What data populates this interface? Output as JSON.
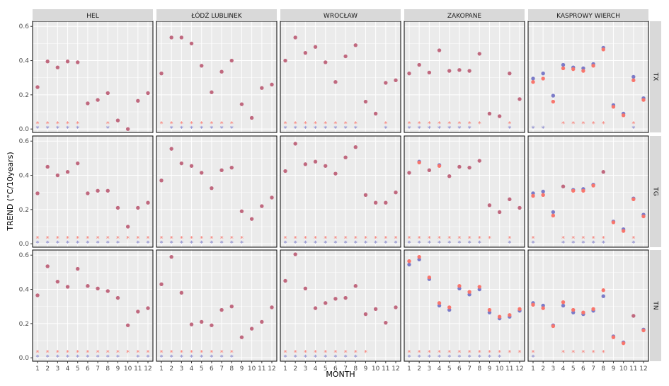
{
  "chart_data": {
    "type": "scatter",
    "xlabel": "MONTH",
    "ylabel": "TREND (°C/10years)",
    "ylim": [
      -0.02,
      0.63
    ],
    "y_ticks": [
      "0.0",
      "0.2",
      "0.4",
      "0.6"
    ],
    "x_ticks": [
      "1",
      "2",
      "3",
      "4",
      "5",
      "6",
      "7",
      "8",
      "9",
      "10",
      "11",
      "12"
    ],
    "columns": [
      "HEL",
      "ŁÓDŹ LUBLINEK",
      "WROCŁAW",
      "ZAKOPANE",
      "KASPROWY WIERCH"
    ],
    "rows": [
      "TX",
      "TG",
      "TN"
    ],
    "colors": {
      "panel_bg": "#ebebeb",
      "grid": "#ffffff",
      "strip_bg": "#d9d9d9",
      "series_red": "#f8766d",
      "series_blue": "#7b7bc8",
      "overlap": "#c0697f"
    },
    "panels": {
      "TX": {
        "HEL": {
          "red": [
            0.245,
            0.395,
            0.36,
            0.395,
            0.39,
            0.15,
            0.17,
            0.21,
            0.05,
            0.0,
            0.165,
            0.21
          ],
          "blue": [
            0.245,
            0.395,
            0.36,
            0.395,
            0.39,
            0.15,
            0.17,
            0.21,
            0.05,
            0.0,
            0.165,
            0.21
          ],
          "sig_red": [
            1,
            1,
            1,
            1,
            1,
            0,
            0,
            1,
            0,
            0,
            0,
            0
          ],
          "sig_blue": [
            1,
            1,
            1,
            1,
            1,
            0,
            0,
            1,
            0,
            0,
            0,
            0
          ]
        },
        "ŁÓDŹ LUBLINEK": {
          "red": [
            0.325,
            0.535,
            0.535,
            0.5,
            0.37,
            0.215,
            0.335,
            0.4,
            0.145,
            0.065,
            0.24,
            0.26
          ],
          "blue": [
            0.325,
            0.535,
            0.535,
            0.5,
            0.37,
            0.215,
            0.335,
            0.4,
            0.145,
            0.065,
            0.24,
            0.26
          ],
          "sig_red": [
            1,
            1,
            1,
            1,
            1,
            1,
            1,
            1,
            0,
            0,
            0,
            0
          ],
          "sig_blue": [
            0,
            1,
            1,
            1,
            1,
            1,
            1,
            1,
            0,
            0,
            0,
            0
          ]
        },
        "WROCŁAW": {
          "red": [
            0.4,
            0.535,
            0.445,
            0.48,
            0.39,
            0.275,
            0.425,
            0.49,
            0.16,
            0.09,
            0.27,
            0.285
          ],
          "blue": [
            0.4,
            0.535,
            0.445,
            0.48,
            0.39,
            0.275,
            0.425,
            0.49,
            0.16,
            0.09,
            0.27,
            0.285
          ],
          "sig_red": [
            1,
            1,
            1,
            1,
            1,
            1,
            1,
            1,
            0,
            0,
            1,
            0
          ],
          "sig_blue": [
            1,
            1,
            1,
            1,
            1,
            1,
            1,
            1,
            0,
            0,
            1,
            0
          ]
        },
        "ZAKOPANE": {
          "red": [
            0.325,
            0.375,
            0.33,
            0.46,
            0.34,
            0.345,
            0.34,
            0.44,
            0.09,
            0.075,
            0.325,
            0.175
          ],
          "blue": [
            0.325,
            0.375,
            0.33,
            0.46,
            0.34,
            0.345,
            0.34,
            0.44,
            0.09,
            0.075,
            0.325,
            0.175
          ],
          "sig_red": [
            1,
            1,
            1,
            1,
            1,
            1,
            1,
            1,
            0,
            0,
            1,
            0
          ],
          "sig_blue": [
            1,
            1,
            1,
            1,
            1,
            1,
            1,
            0,
            0,
            0,
            1,
            0
          ]
        },
        "KASPROWY WIERCH": {
          "red": [
            0.275,
            0.295,
            0.16,
            0.355,
            0.35,
            0.34,
            0.37,
            0.465,
            0.13,
            0.08,
            0.285,
            0.17
          ],
          "blue": [
            0.295,
            0.325,
            0.195,
            0.375,
            0.36,
            0.355,
            0.38,
            0.475,
            0.14,
            0.09,
            0.305,
            0.18
          ],
          "sig_red": [
            0,
            0,
            0,
            1,
            1,
            1,
            1,
            1,
            0,
            0,
            1,
            0
          ],
          "sig_blue": [
            1,
            1,
            0,
            0,
            0,
            0,
            0,
            0,
            0,
            0,
            1,
            0
          ]
        }
      },
      "TG": {
        "HEL": {
          "red": [
            0.295,
            0.45,
            0.4,
            0.42,
            0.47,
            0.295,
            0.31,
            0.31,
            0.21,
            0.1,
            0.21,
            0.24
          ],
          "blue": [
            0.295,
            0.45,
            0.4,
            0.42,
            0.47,
            0.295,
            0.31,
            0.31,
            0.21,
            0.1,
            0.21,
            0.24
          ],
          "sig_red": [
            1,
            1,
            1,
            1,
            1,
            1,
            1,
            1,
            1,
            1,
            1,
            1
          ],
          "sig_blue": [
            1,
            1,
            1,
            1,
            1,
            1,
            1,
            1,
            1,
            0,
            1,
            1
          ]
        },
        "ŁÓDŹ LUBLINEK": {
          "red": [
            0.37,
            0.555,
            0.47,
            0.455,
            0.415,
            0.325,
            0.43,
            0.445,
            0.19,
            0.145,
            0.22,
            0.27
          ],
          "blue": [
            0.37,
            0.555,
            0.47,
            0.455,
            0.415,
            0.325,
            0.43,
            0.445,
            0.19,
            0.145,
            0.22,
            0.27
          ],
          "sig_red": [
            1,
            1,
            1,
            1,
            1,
            1,
            1,
            1,
            1,
            0,
            0,
            0
          ],
          "sig_blue": [
            1,
            1,
            1,
            1,
            1,
            1,
            1,
            1,
            1,
            0,
            0,
            0
          ]
        },
        "WROCŁAW": {
          "red": [
            0.425,
            0.585,
            0.465,
            0.48,
            0.455,
            0.41,
            0.505,
            0.565,
            0.285,
            0.24,
            0.24,
            0.3
          ],
          "blue": [
            0.425,
            0.585,
            0.465,
            0.48,
            0.455,
            0.41,
            0.505,
            0.565,
            0.285,
            0.24,
            0.24,
            0.3
          ],
          "sig_red": [
            1,
            1,
            1,
            1,
            1,
            1,
            1,
            1,
            1,
            1,
            1,
            1
          ],
          "sig_blue": [
            1,
            1,
            1,
            1,
            1,
            1,
            1,
            1,
            1,
            1,
            1,
            1
          ]
        },
        "ZAKOPANE": {
          "red": [
            0.415,
            0.475,
            0.43,
            0.455,
            0.395,
            0.45,
            0.445,
            0.485,
            0.225,
            0.185,
            0.26,
            0.21
          ],
          "blue": [
            0.415,
            0.48,
            0.43,
            0.46,
            0.395,
            0.45,
            0.445,
            0.485,
            0.225,
            0.185,
            0.26,
            0.21
          ],
          "sig_red": [
            1,
            1,
            1,
            1,
            1,
            1,
            1,
            1,
            1,
            0,
            1,
            0
          ],
          "sig_blue": [
            1,
            1,
            1,
            1,
            1,
            1,
            1,
            1,
            0,
            0,
            1,
            0
          ]
        },
        "KASPROWY WIERCH": {
          "red": [
            0.28,
            0.285,
            0.165,
            0.335,
            0.31,
            0.31,
            0.34,
            0.42,
            0.125,
            0.075,
            0.26,
            0.16
          ],
          "blue": [
            0.295,
            0.305,
            0.185,
            0.335,
            0.315,
            0.32,
            0.345,
            0.42,
            0.13,
            0.085,
            0.265,
            0.17
          ],
          "sig_red": [
            1,
            0,
            0,
            1,
            1,
            1,
            1,
            1,
            0,
            0,
            1,
            0
          ],
          "sig_blue": [
            1,
            0,
            0,
            1,
            1,
            1,
            1,
            1,
            0,
            0,
            1,
            0
          ]
        }
      },
      "TN": {
        "HEL": {
          "red": [
            0.365,
            0.535,
            0.445,
            0.415,
            0.52,
            0.42,
            0.405,
            0.39,
            0.35,
            0.19,
            0.27,
            0.29
          ],
          "blue": [
            0.365,
            0.535,
            0.445,
            0.415,
            0.52,
            0.42,
            0.405,
            0.39,
            0.35,
            0.19,
            0.27,
            0.29
          ],
          "sig_red": [
            1,
            1,
            1,
            1,
            1,
            1,
            1,
            1,
            1,
            1,
            1,
            1
          ],
          "sig_blue": [
            1,
            1,
            1,
            1,
            1,
            1,
            1,
            1,
            1,
            0,
            1,
            1
          ]
        },
        "ŁÓDŹ LUBLINEK": {
          "red": [
            0.43,
            0.59,
            0.38,
            0.195,
            0.21,
            0.19,
            0.28,
            0.3,
            0.12,
            0.17,
            0.21,
            0.295
          ],
          "blue": [
            0.43,
            0.59,
            0.38,
            0.195,
            0.21,
            0.19,
            0.28,
            0.3,
            0.12,
            0.17,
            0.21,
            0.295
          ],
          "sig_red": [
            1,
            1,
            1,
            1,
            1,
            1,
            1,
            1,
            0,
            0,
            0,
            0
          ],
          "sig_blue": [
            1,
            1,
            1,
            1,
            1,
            1,
            1,
            1,
            0,
            0,
            0,
            0
          ]
        },
        "WROCŁAW": {
          "red": [
            0.45,
            0.605,
            0.405,
            0.29,
            0.32,
            0.345,
            0.35,
            0.42,
            0.255,
            0.285,
            0.205,
            0.295
          ],
          "blue": [
            0.45,
            0.605,
            0.405,
            0.29,
            0.32,
            0.345,
            0.35,
            0.42,
            0.255,
            0.285,
            0.205,
            0.295
          ],
          "sig_red": [
            1,
            1,
            1,
            1,
            1,
            1,
            1,
            1,
            1,
            0,
            0,
            0
          ],
          "sig_blue": [
            1,
            1,
            1,
            1,
            1,
            1,
            1,
            1,
            0,
            0,
            0,
            0
          ]
        },
        "ZAKOPANE": {
          "red": [
            0.565,
            0.59,
            0.47,
            0.32,
            0.295,
            0.42,
            0.385,
            0.415,
            0.28,
            0.24,
            0.25,
            0.285
          ],
          "blue": [
            0.545,
            0.575,
            0.46,
            0.305,
            0.28,
            0.405,
            0.37,
            0.4,
            0.265,
            0.23,
            0.24,
            0.275
          ],
          "sig_red": [
            1,
            1,
            1,
            1,
            1,
            1,
            1,
            1,
            1,
            1,
            1,
            1
          ],
          "sig_blue": [
            1,
            1,
            1,
            1,
            1,
            1,
            1,
            1,
            1,
            1,
            0,
            0
          ]
        },
        "KASPROWY WIERCH": {
          "red": [
            0.31,
            0.29,
            0.185,
            0.325,
            0.28,
            0.265,
            0.285,
            0.395,
            0.12,
            0.085,
            0.245,
            0.16
          ],
          "blue": [
            0.32,
            0.305,
            0.19,
            0.305,
            0.265,
            0.255,
            0.275,
            0.36,
            0.125,
            0.09,
            0.245,
            0.165
          ],
          "sig_red": [
            1,
            0,
            0,
            1,
            1,
            1,
            1,
            1,
            0,
            0,
            0,
            0
          ],
          "sig_blue": [
            1,
            0,
            0,
            0,
            0,
            0,
            0,
            0,
            0,
            0,
            0,
            0
          ]
        }
      }
    }
  }
}
